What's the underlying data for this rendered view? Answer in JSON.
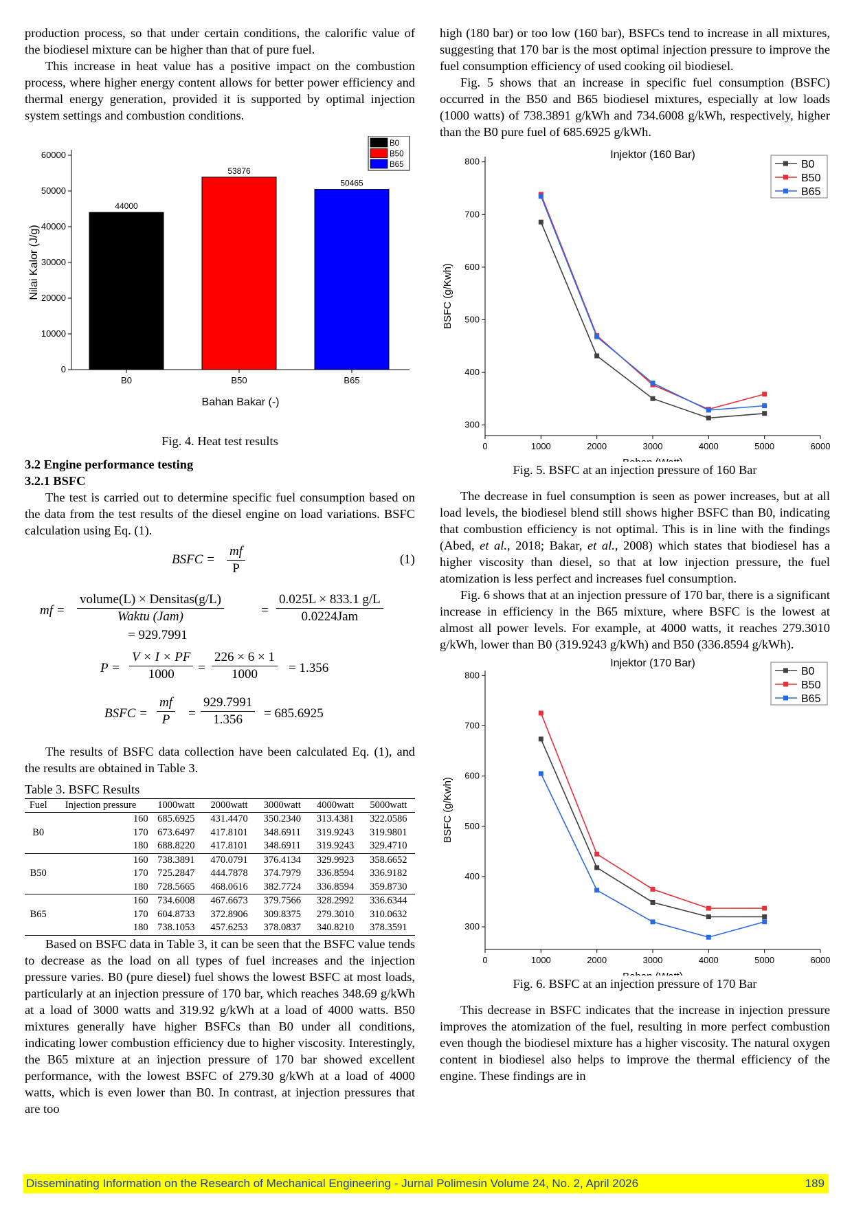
{
  "left": {
    "para1": "production process, so that under certain conditions, the calorific value of the biodiesel mixture can be higher than that of pure fuel.",
    "para2": "This increase in heat value has a positive impact on the combustion process, where higher energy content allows for better power efficiency and thermal energy generation, provided it is supported by optimal injection system settings and combustion conditions.",
    "fig4_caption": "Fig. 4. Heat test results",
    "section_heading": "3.2 Engine performance testing",
    "subsection_heading": "3.2.1 BSFC",
    "para3": "The test is carried out to determine specific fuel consumption based on the data from the test results of the diesel engine on load variations. BSFC calculation using Eq. (1).",
    "eq1_number": "(1)",
    "para4": "The results of BSFC data collection have been calculated Eq. (1), and the results are obtained in Table 3.",
    "table_caption": "Table 3. BSFC Results",
    "para5": "Based on BSFC data in Table 3, it can be seen that the BSFC value tends to decrease as the load on all types of fuel increases and the injection pressure varies. B0 (pure diesel) fuel shows the lowest BSFC at most loads, particularly at an injection pressure of 170 bar, which reaches 348.69 g/kWh at a load of 3000 watts and 319.92 g/kWh at a load of 4000 watts. B50 mixtures generally have higher BSFCs than B0 under all conditions, indicating lower combustion efficiency due to higher viscosity. Interestingly, the B65 mixture at an injection pressure of 170 bar showed excellent performance, with the lowest BSFC of 279.30 g/kWh at a load of 4000 watts, which is even lower than B0. In contrast, at injection pressures that are too"
  },
  "right": {
    "para1": "high (180 bar) or too low (160 bar), BSFCs tend to increase in all mixtures, suggesting that 170 bar is the most optimal injection pressure to improve the fuel consumption efficiency of used cooking oil biodiesel.",
    "para2": "Fig. 5 shows that an increase in specific fuel consumption (BSFC) occurred in the B50 and B65 biodiesel mixtures, especially at low loads (1000 watts) of 738.3891 g/kWh and 734.6008 g/kWh, respectively, higher than the B0 pure fuel of 685.6925 g/kWh.",
    "fig5_caption": "Fig. 5. BSFC at an injection pressure of 160 Bar",
    "para3_pre": "The decrease in fuel consumption is seen as power increases, but at all load levels, the biodiesel blend still shows higher BSFC than B0, indicating that combustion efficiency is not optimal. This is in line with the findings (Abed, ",
    "para3_etal1": "et al.",
    "para3_mid": ", 2018; Bakar, ",
    "para3_etal2": "et al.",
    "para3_post": ", 2008) which states that biodiesel has a higher viscosity than diesel, so that at low injection pressure, the fuel atomization is less perfect and increases fuel consumption.",
    "para4": "Fig. 6 shows that at an injection pressure of 170 bar, there is a significant increase in efficiency in the B65 mixture, where BSFC is the lowest at almost all power levels. For example, at 4000 watts, it reaches 279.3010 g/kWh, lower than B0 (319.9243 g/kWh) and B50 (336.8594 g/kWh).",
    "fig6_caption": "Fig. 6. BSFC at an injection pressure of 170 Bar",
    "para5": "This decrease in BSFC indicates that the increase in injection pressure improves the atomization of the fuel, resulting in more perfect combustion even though the biodiesel mixture has a higher viscosity. The natural oxygen content in biodiesel also helps to improve the thermal efficiency of the engine. These findings are in"
  },
  "equations": {
    "eq1_lhs": "BSFC =",
    "eq1_num": "mf",
    "eq1_den": "P",
    "eq2_lhs": "mf =",
    "eq2_num1": "volume(L) × Densitas(g/L)",
    "eq2_den1": "Waktu (Jam)",
    "eq2_num2": "0.025L × 833.1 g/L",
    "eq2_den2": "0.0224Jam",
    "eq2_result": "= 929.7991",
    "eq3_lhs": "P =",
    "eq3_num1": "V × I × PF",
    "eq3_den1": "1000",
    "eq3_num2": "226 × 6 × 1",
    "eq3_den2": "1000",
    "eq3_result": "= 1.356",
    "eq4_lhs": "BSFC =",
    "eq4_num1": "mf",
    "eq4_den1": "P",
    "eq4_num2": "929.7991",
    "eq4_den2": "1.356",
    "eq4_result": "= 685.6925",
    "equals": "="
  },
  "table3": {
    "headers": [
      "Fuel",
      "Injection pressure",
      "1000watt",
      "2000watt",
      "3000watt",
      "4000watt",
      "5000watt"
    ],
    "groups": [
      {
        "fuel": "B0",
        "rows": [
          [
            "160",
            "685.6925",
            "431.4470",
            "350.2340",
            "313.4381",
            "322.0586"
          ],
          [
            "170",
            "673.6497",
            "417.8101",
            "348.6911",
            "319.9243",
            "319.9801"
          ],
          [
            "180",
            "688.8220",
            "417.8101",
            "348.6911",
            "319.9243",
            "329.4710"
          ]
        ]
      },
      {
        "fuel": "B50",
        "rows": [
          [
            "160",
            "738.3891",
            "470.0791",
            "376.4134",
            "329.9923",
            "358.6652"
          ],
          [
            "170",
            "725.2847",
            "444.7878",
            "374.7979",
            "336.8594",
            "336.9182"
          ],
          [
            "180",
            "728.5665",
            "468.0616",
            "382.7724",
            "336.8594",
            "359.8730"
          ]
        ]
      },
      {
        "fuel": "B65",
        "rows": [
          [
            "160",
            "734.6008",
            "467.6673",
            "379.7566",
            "328.2992",
            "336.6344"
          ],
          [
            "170",
            "604.8733",
            "372.8906",
            "309.8375",
            "279.3010",
            "310.0632"
          ],
          [
            "180",
            "738.1053",
            "457.6253",
            "378.0837",
            "340.8210",
            "378.3591"
          ]
        ]
      }
    ]
  },
  "chart_data": [
    {
      "type": "bar",
      "categories": [
        "B0",
        "B50",
        "B65"
      ],
      "values": [
        44000,
        53876,
        50465
      ],
      "data_labels": [
        "44000",
        "53876",
        "50465"
      ],
      "colors": [
        "#000000",
        "#ff0000",
        "#0000ff"
      ],
      "legend": [
        "B0",
        "B50",
        "B65"
      ],
      "legend_position": "top-right",
      "title": "",
      "xlabel": "Bahan Bakar (-)",
      "ylabel": "Nilai Kalor (J/g)",
      "ylim": [
        0,
        60000
      ],
      "yticks": [
        0,
        10000,
        20000,
        30000,
        40000,
        50000,
        60000
      ]
    },
    {
      "type": "line",
      "title": "Injektor (160 Bar)",
      "xlabel": "Beban (Watt)",
      "ylabel": "BSFC (g/Kwh)",
      "xlim": [
        0,
        6000
      ],
      "ylim": [
        280,
        810
      ],
      "xticks": [
        0,
        1000,
        2000,
        3000,
        4000,
        5000,
        6000
      ],
      "yticks": [
        300,
        400,
        500,
        600,
        700,
        800
      ],
      "x": [
        1000,
        2000,
        3000,
        4000,
        5000
      ],
      "legend_position": "top-right",
      "series": [
        {
          "name": "B0",
          "color": "#404040",
          "values": [
            685.6925,
            431.447,
            350.234,
            313.4381,
            322.0586
          ]
        },
        {
          "name": "B50",
          "color": "#e8303a",
          "values": [
            738.3891,
            470.0791,
            376.4134,
            329.9923,
            358.6652
          ]
        },
        {
          "name": "B65",
          "color": "#2a6ae0",
          "values": [
            734.6008,
            467.6673,
            379.7566,
            328.2992,
            336.6344
          ]
        }
      ]
    },
    {
      "type": "line",
      "title": "Injektor (170 Bar)",
      "xlabel": "Beban (Watt)",
      "ylabel": "BSFC (g/Kwh)",
      "xlim": [
        0,
        6000
      ],
      "ylim": [
        255,
        810
      ],
      "xticks": [
        0,
        1000,
        2000,
        3000,
        4000,
        5000,
        6000
      ],
      "yticks": [
        300,
        400,
        500,
        600,
        700,
        800
      ],
      "x": [
        1000,
        2000,
        3000,
        4000,
        5000
      ],
      "legend_position": "top-right",
      "series": [
        {
          "name": "B0",
          "color": "#404040",
          "values": [
            673.6497,
            417.8101,
            348.6911,
            319.9243,
            319.9801
          ]
        },
        {
          "name": "B50",
          "color": "#e8303a",
          "values": [
            725.2847,
            444.7878,
            374.7979,
            336.8594,
            336.9182
          ]
        },
        {
          "name": "B65",
          "color": "#2a6ae0",
          "values": [
            604.8733,
            372.8906,
            309.8375,
            279.301,
            310.0632
          ]
        }
      ]
    }
  ],
  "footer": {
    "text": "Disseminating Information on the Research of Mechanical Engineering - Jurnal Polimesin Volume 24, No. 2, April 2026",
    "page": "189"
  }
}
